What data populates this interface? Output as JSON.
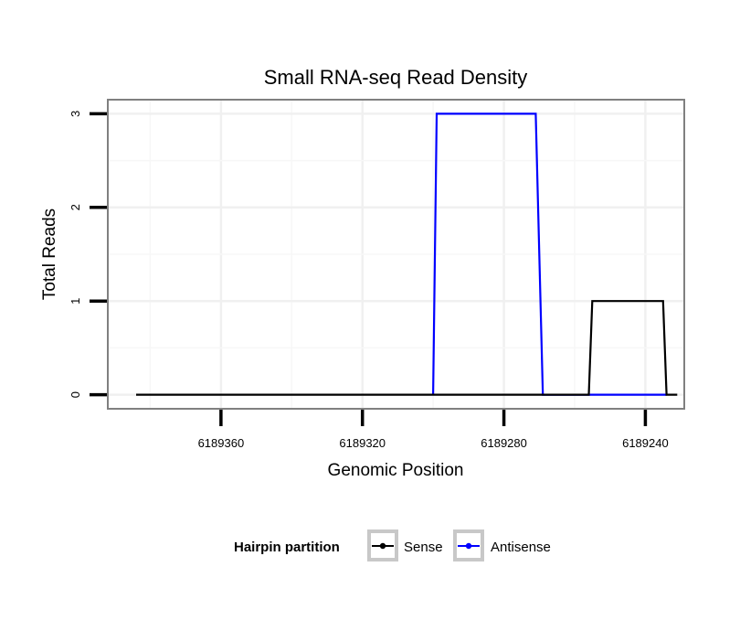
{
  "chart_data": {
    "type": "line",
    "title": "Small RNA-seq Read Density",
    "xlabel": "Genomic Position",
    "ylabel": "Total Reads",
    "x_reversed": true,
    "xlim": [
      6189392,
      6189229
    ],
    "ylim": [
      -0.15,
      3.15
    ],
    "x_ticks": [
      6189360,
      6189320,
      6189280,
      6189240
    ],
    "x_tick_labels": [
      "6189360",
      "6189320",
      "6189280",
      "6189240"
    ],
    "y_ticks": [
      0,
      1,
      2,
      3
    ],
    "y_tick_labels": [
      "0",
      "1",
      "2",
      "3"
    ],
    "grid": true,
    "legend": {
      "title": "Hairpin partition",
      "placement": "bottom"
    },
    "series": [
      {
        "name": "Sense",
        "color": "#000000",
        "x": [
          6189384,
          6189256,
          6189255,
          6189235,
          6189234,
          6189231
        ],
        "y": [
          0,
          0,
          1,
          1,
          0,
          0
        ]
      },
      {
        "name": "Antisense",
        "color": "#0000ff",
        "x": [
          6189300,
          6189299,
          6189271,
          6189269,
          6189234
        ],
        "y": [
          0,
          3,
          3,
          0,
          0
        ]
      }
    ]
  }
}
